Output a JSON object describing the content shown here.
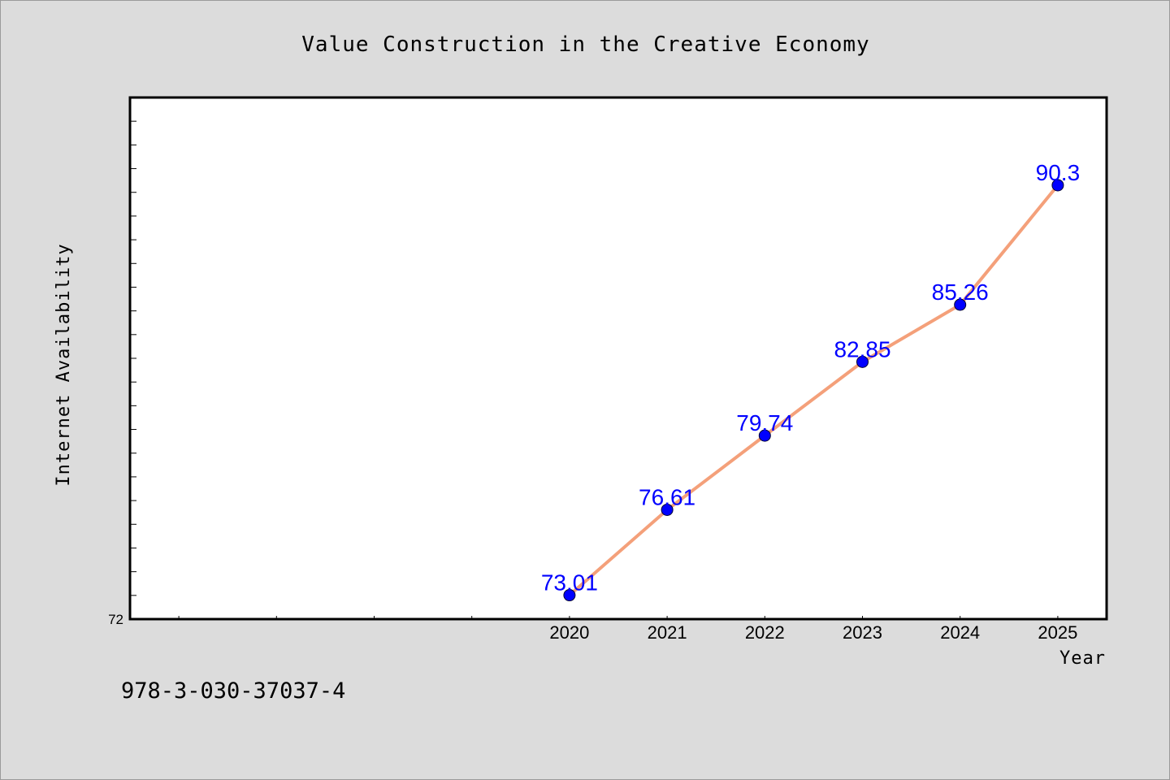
{
  "chart_data": {
    "type": "line",
    "title": "Value Construction in the Creative Economy",
    "xlabel": "Year",
    "ylabel": "Internet Availability",
    "categories": [
      "2020",
      "2021",
      "2022",
      "2023",
      "2024",
      "2025"
    ],
    "series": [
      {
        "values": [
          73.01,
          76.61,
          79.74,
          82.85,
          85.26,
          90.3
        ],
        "line_color": "#f4a07a",
        "marker_color": "#0000ff",
        "label_color": "#0000ff"
      }
    ],
    "y_tick_labels": [
      "72"
    ],
    "ylim": [
      72,
      94
    ],
    "xlim": [
      2015.5,
      2025.5
    ],
    "grid": false,
    "legend": "none"
  },
  "footer": {
    "code": "978-3-030-37037-4"
  },
  "colors": {
    "background": "#dcdcdc",
    "plot_background": "#ffffff",
    "axis": "#000000"
  }
}
